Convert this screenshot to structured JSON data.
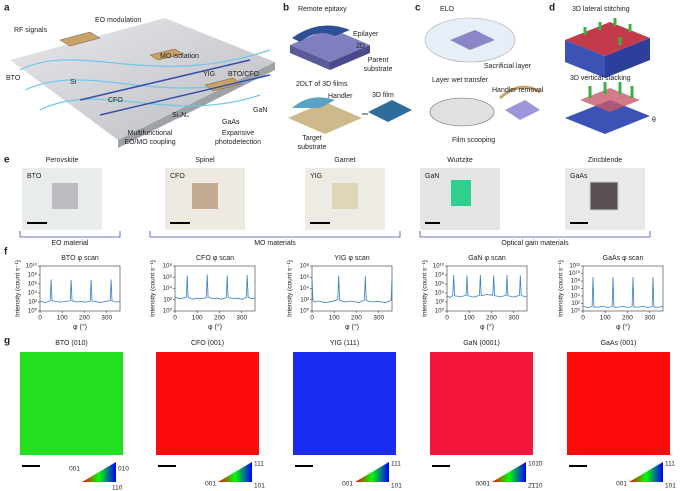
{
  "panel_a": {
    "letter": "a",
    "rf_signals": "RF signals",
    "eo_modulation": "EO modulation",
    "mo_isolation": "MO isolation",
    "yig": "YIG",
    "bto_cfo": "BTO/CFO",
    "bto": "BTO",
    "si": "Si",
    "cfo": "CFO",
    "gan": "GaN",
    "si3n4": "Si₃N₄",
    "gaas": "GaAs",
    "caption_left": [
      "Multifunctional",
      "EO/MO coupling"
    ],
    "caption_right": [
      "Expansive",
      "photodetection"
    ]
  },
  "panel_b": {
    "letter": "b",
    "remote_epitaxy": "Remote epitaxy",
    "epilayer": "Epilayer",
    "two_d": "2D",
    "parent_substrate": [
      "Parent",
      "substrate"
    ],
    "dlt": "2DLT of 3D films",
    "handler": "Handler",
    "film": "3D film",
    "target_substrate": [
      "Target",
      "substrate"
    ]
  },
  "panel_c": {
    "letter": "c",
    "elo": "ELO",
    "sacrificial": "Sacrificial layer",
    "wet": "Layer wet transfer",
    "removal": "Handler removal",
    "scooping": "Film scooping"
  },
  "panel_d": {
    "letter": "d",
    "lateral": "3D lateral stitching",
    "vertical": "3D vertical stacking",
    "theta": "θ"
  },
  "panel_e": {
    "letter": "e",
    "samples": [
      {
        "structure": "Perovskite",
        "name": "BTO"
      },
      {
        "structure": "Spinel",
        "name": "CFO"
      },
      {
        "structure": "Garnet",
        "name": "YIG"
      },
      {
        "structure": "Wurtzite",
        "name": "GaN"
      },
      {
        "structure": "Zincblende",
        "name": "GaAs"
      }
    ],
    "groups": [
      "EO material",
      "MO materials",
      "Optical gain materials"
    ]
  },
  "panel_f": {
    "letter": "f"
  },
  "chart_data": [
    {
      "type": "line",
      "title": "BTO φ scan",
      "x_label": "φ (°)",
      "y_label": "Intensity (count s⁻¹)",
      "log_y": true,
      "color": "#3a7fc1",
      "xlim": [
        0,
        360
      ],
      "xticks": [
        0,
        100,
        200,
        300
      ],
      "ylim": [
        1,
        10000000000
      ],
      "yticks": [
        {
          "value": 1,
          "label": "10⁰"
        },
        {
          "value": 100,
          "label": "10²"
        },
        {
          "value": 10000,
          "label": "10⁴"
        },
        {
          "value": 1000000,
          "label": "10⁶"
        },
        {
          "value": 100000000,
          "label": "10⁸"
        },
        {
          "value": 10000000000,
          "label": "10¹⁰"
        }
      ],
      "x": [
        0,
        25,
        46,
        50,
        54,
        75,
        95,
        115,
        136,
        140,
        144,
        165,
        185,
        205,
        226,
        230,
        234,
        255,
        275,
        295,
        316,
        320,
        324,
        340,
        360
      ],
      "values": [
        150,
        80,
        200,
        10000000,
        200,
        120,
        90,
        150,
        180,
        8000000,
        200,
        100,
        130,
        90,
        170,
        9000000,
        160,
        110,
        80,
        140,
        200,
        10000000,
        180,
        100,
        120
      ]
    },
    {
      "type": "line",
      "title": "CFO φ scan",
      "x_label": "φ (°)",
      "y_label": "Intensity (count s⁻¹)",
      "log_y": true,
      "color": "#3a7fc1",
      "xlim": [
        0,
        360
      ],
      "xticks": [
        0,
        100,
        200,
        300
      ],
      "ylim": [
        1,
        100000000
      ],
      "yticks": [
        {
          "value": 1,
          "label": "10⁰"
        },
        {
          "value": 100,
          "label": "10²"
        },
        {
          "value": 10000,
          "label": "10⁴"
        },
        {
          "value": 1000000,
          "label": "10⁶"
        },
        {
          "value": 100000000,
          "label": "10⁸"
        }
      ],
      "x": [
        0,
        20,
        51,
        55,
        59,
        80,
        100,
        120,
        141,
        145,
        149,
        170,
        190,
        210,
        231,
        235,
        239,
        260,
        280,
        300,
        321,
        325,
        329,
        345,
        360
      ],
      "values": [
        300,
        150,
        250,
        2000000,
        300,
        120,
        200,
        150,
        250,
        3000000,
        300,
        150,
        200,
        120,
        250,
        2000000,
        300,
        150,
        200,
        120,
        250,
        2500000,
        300,
        150,
        200
      ]
    },
    {
      "type": "line",
      "title": "YIG φ scan",
      "x_label": "φ (°)",
      "y_label": "Intensity (count s⁻¹)",
      "log_y": true,
      "color": "#3a7fc1",
      "xlim": [
        0,
        360
      ],
      "xticks": [
        0,
        100,
        200,
        300
      ],
      "ylim": [
        1,
        100000000
      ],
      "yticks": [
        {
          "value": 1,
          "label": "10⁰"
        },
        {
          "value": 100,
          "label": "10²"
        },
        {
          "value": 10000,
          "label": "10⁴"
        },
        {
          "value": 1000000,
          "label": "10⁶"
        },
        {
          "value": 100000000,
          "label": "10⁸"
        }
      ],
      "x": [
        0,
        4,
        10,
        30,
        60,
        90,
        116,
        120,
        124,
        150,
        180,
        210,
        236,
        240,
        244,
        270,
        300,
        330,
        356,
        360
      ],
      "values": [
        1000000,
        100,
        40,
        60,
        30,
        50,
        100,
        2000000,
        80,
        40,
        60,
        30,
        90,
        1500000,
        70,
        40,
        50,
        30,
        80,
        1000000
      ]
    },
    {
      "type": "line",
      "title": "GaN φ scan",
      "x_label": "φ (°)",
      "y_label": "Intensity (count s⁻¹)",
      "log_y": true,
      "color": "#3a7fc1",
      "xlim": [
        0,
        360
      ],
      "xticks": [
        0,
        100,
        200,
        300
      ],
      "ylim": [
        1,
        10000000000
      ],
      "yticks": [
        {
          "value": 1,
          "label": "10⁰"
        },
        {
          "value": 100,
          "label": "10²"
        },
        {
          "value": 10000,
          "label": "10⁴"
        },
        {
          "value": 1000000,
          "label": "10⁶"
        },
        {
          "value": 100000000,
          "label": "10⁸"
        },
        {
          "value": 10000000000,
          "label": "10¹⁰"
        }
      ],
      "x": [
        0,
        15,
        26,
        30,
        34,
        60,
        86,
        90,
        94,
        120,
        146,
        150,
        154,
        180,
        206,
        210,
        214,
        240,
        266,
        270,
        274,
        300,
        326,
        330,
        334,
        360
      ],
      "values": [
        2000,
        1000,
        3000,
        100000000,
        2500,
        1500,
        3000,
        80000000,
        2500,
        1200,
        3000,
        100000000,
        2500,
        5000,
        3000,
        90000000,
        2500,
        1500,
        3000,
        100000000,
        2500,
        1200,
        3000,
        80000000,
        2500,
        1500
      ]
    },
    {
      "type": "line",
      "title": "GaAs φ scan",
      "x_label": "φ (°)",
      "y_label": "Intensity (count s⁻¹)",
      "log_y": true,
      "color": "#3a7fc1",
      "xlim": [
        0,
        360
      ],
      "xticks": [
        0,
        100,
        200,
        300
      ],
      "ylim": [
        1,
        1000000000000
      ],
      "yticks": [
        {
          "value": 1,
          "label": "10⁰"
        },
        {
          "value": 100,
          "label": "10²"
        },
        {
          "value": 10000,
          "label": "10⁴"
        },
        {
          "value": 1000000,
          "label": "10⁶"
        },
        {
          "value": 100000000,
          "label": "10⁸"
        },
        {
          "value": 10000000000,
          "label": "10¹⁰"
        },
        {
          "value": 1000000000000,
          "label": "10¹²"
        }
      ],
      "x": [
        0,
        20,
        41,
        45,
        49,
        70,
        90,
        110,
        131,
        135,
        139,
        160,
        180,
        200,
        221,
        225,
        229,
        250,
        270,
        290,
        311,
        315,
        319,
        340,
        360
      ],
      "values": [
        20,
        8,
        15,
        1000000000,
        12,
        10,
        20,
        8,
        15,
        1000000000,
        12,
        10,
        20,
        8,
        15,
        1000000000,
        12,
        10,
        20,
        8,
        15,
        1000000000,
        12,
        10,
        20
      ]
    }
  ],
  "panel_g": {
    "letter": "g",
    "maps": [
      {
        "title": "BTO (010)",
        "color": "#22e01e",
        "legend": [
          "001",
          "010",
          "110"
        ]
      },
      {
        "title": "CFO (001)",
        "color": "#fb0a0a",
        "legend": [
          "001",
          "111",
          "101"
        ]
      },
      {
        "title": "YIG (111)",
        "color": "#1a2cf0",
        "legend": [
          "001",
          "111",
          "101"
        ]
      },
      {
        "title": "GaN (0001)",
        "color": "#f5143a",
        "legend": [
          "0001",
          "101̄0",
          "2̄1̄10"
        ]
      },
      {
        "title": "GaAs (001)",
        "color": "#fc0a0a",
        "legend": [
          "001",
          "111",
          "101"
        ]
      }
    ]
  }
}
